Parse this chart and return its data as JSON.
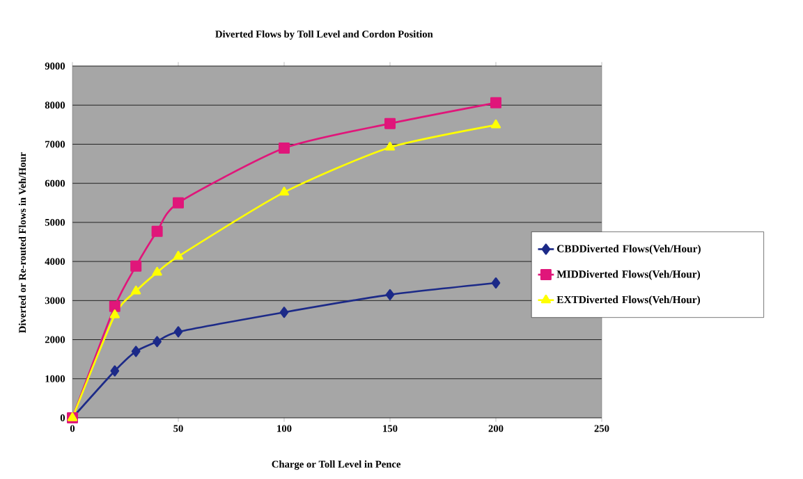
{
  "chart_data": {
    "type": "line",
    "title": "Diverted Flows by Toll Level and Cordon Position",
    "xlabel": "Charge or Toll Level in Pence",
    "ylabel": "Diverted or Re-routed Flows in Veh/Hour",
    "x": [
      0,
      20,
      30,
      40,
      50,
      100,
      150,
      200
    ],
    "series": [
      {
        "name": "CBDDiverted Flows(Veh/Hour)",
        "color": "#1c2a88",
        "marker": "diamond",
        "values": [
          0,
          1200,
          1700,
          1950,
          2200,
          2700,
          3150,
          3450
        ]
      },
      {
        "name": "MIDDiverted Flows(Veh/Hour)",
        "color": "#e0167a",
        "marker": "square",
        "values": [
          0,
          2850,
          3880,
          4770,
          5500,
          6900,
          7530,
          8060
        ]
      },
      {
        "name": "EXTDiverted Flows(Veh/Hour)",
        "color": "#ffff00",
        "marker": "triangle",
        "values": [
          0,
          2630,
          3240,
          3720,
          4130,
          5770,
          6920,
          7490
        ]
      }
    ],
    "xlim": [
      0,
      250
    ],
    "xticks": [
      0,
      50,
      100,
      150,
      200,
      250
    ],
    "ylim": [
      0,
      9000
    ],
    "yticks": [
      0,
      1000,
      2000,
      3000,
      4000,
      5000,
      6000,
      7000,
      8000,
      9000
    ],
    "grid": "y",
    "legend": "right"
  }
}
